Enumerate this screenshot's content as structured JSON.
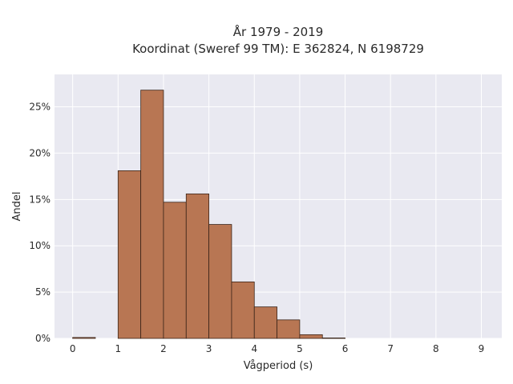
{
  "chart_data": {
    "type": "bar",
    "title": "År 1979 - 2019",
    "subtitle": "Koordinat (Sweref 99 TM): E 362824, N 6198729",
    "xlabel": "Vågperiod (s)",
    "ylabel": "Andel",
    "bin_width": 0.5,
    "bins": [
      {
        "start": 0.0,
        "value": 0.1
      },
      {
        "start": 0.5,
        "value": 0.0
      },
      {
        "start": 1.0,
        "value": 18.1
      },
      {
        "start": 1.5,
        "value": 26.8
      },
      {
        "start": 2.0,
        "value": 14.7
      },
      {
        "start": 2.5,
        "value": 15.6
      },
      {
        "start": 3.0,
        "value": 12.3
      },
      {
        "start": 3.5,
        "value": 6.1
      },
      {
        "start": 4.0,
        "value": 3.4
      },
      {
        "start": 4.5,
        "value": 2.0
      },
      {
        "start": 5.0,
        "value": 0.4
      },
      {
        "start": 5.5,
        "value": 0.05
      }
    ],
    "xlim": [
      -0.4,
      9.45
    ],
    "ylim": [
      0,
      28.5
    ],
    "xticks": [
      0,
      1,
      2,
      3,
      4,
      5,
      6,
      7,
      8,
      9
    ],
    "xtick_labels": [
      "0",
      "1",
      "2",
      "3",
      "4",
      "5",
      "6",
      "7",
      "8",
      "9"
    ],
    "yticks": [
      0,
      5,
      10,
      15,
      20,
      25
    ],
    "ytick_labels": [
      "0%",
      "5%",
      "10%",
      "15%",
      "20%",
      "25%"
    ],
    "grid": true,
    "bar_color": "#b87653",
    "bar_edge_color": "#3a2418",
    "plot_background": "#e9e9f1"
  }
}
